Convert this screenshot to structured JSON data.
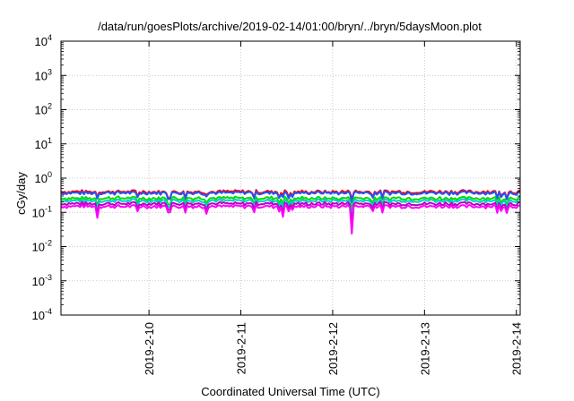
{
  "chart_data": {
    "type": "line",
    "title": "/data/run/goesPlots/archive/2019-02-14/01:00/bryn/../bryn/5daysMoon.plot",
    "xlabel": "Coordinated Universal Time (UTC)",
    "ylabel": "cGy/day",
    "y_scale": "log",
    "ylim": [
      0.0001,
      10000
    ],
    "y_ticks": [
      {
        "value": 10000,
        "base": "10",
        "exp": "4"
      },
      {
        "value": 1000,
        "base": "10",
        "exp": "3"
      },
      {
        "value": 100,
        "base": "10",
        "exp": "2"
      },
      {
        "value": 10,
        "base": "10",
        "exp": "1"
      },
      {
        "value": 1,
        "base": "10",
        "exp": "0"
      },
      {
        "value": 0.1,
        "base": "10",
        "exp": "-1"
      },
      {
        "value": 0.01,
        "base": "10",
        "exp": "-2"
      },
      {
        "value": 0.001,
        "base": "10",
        "exp": "-3"
      },
      {
        "value": 0.0001,
        "base": "10",
        "exp": "-4"
      }
    ],
    "xlim": [
      "2019-02-09 01:00",
      "2019-02-14 01:00"
    ],
    "x_ticks": [
      {
        "value": "2019-02-10 00:00",
        "label": "2019-2-10"
      },
      {
        "value": "2019-02-11 00:00",
        "label": "2019-2-11"
      },
      {
        "value": "2019-02-12 00:00",
        "label": "2019-2-12"
      },
      {
        "value": "2019-02-13 00:00",
        "label": "2019-2-13"
      },
      {
        "value": "2019-02-14 00:00",
        "label": "2019-2-14"
      }
    ],
    "grid": true,
    "legend": "none",
    "sample_start": "2019-02-09 01:00",
    "sample_step_hours": 0.5,
    "series": [
      {
        "color": "#ff0000",
        "level": 0.4
      },
      {
        "color": "#2255ff",
        "level": 0.37
      },
      {
        "color": "#00dd00",
        "level": 0.26
      },
      {
        "color": "#00cccc",
        "level": 0.22
      },
      {
        "color": "#bb00bb",
        "level": 0.18
      },
      {
        "color": "#ff00ff",
        "level": 0.15
      }
    ],
    "dips": [
      {
        "x": "2019-02-09 10:30",
        "factor": 0.5
      },
      {
        "x": "2019-02-10 15:00",
        "factor": 0.65
      },
      {
        "x": "2019-02-11 11:00",
        "factor": 0.5
      },
      {
        "x": "2019-02-12 05:00",
        "factor": 0.18
      }
    ]
  }
}
